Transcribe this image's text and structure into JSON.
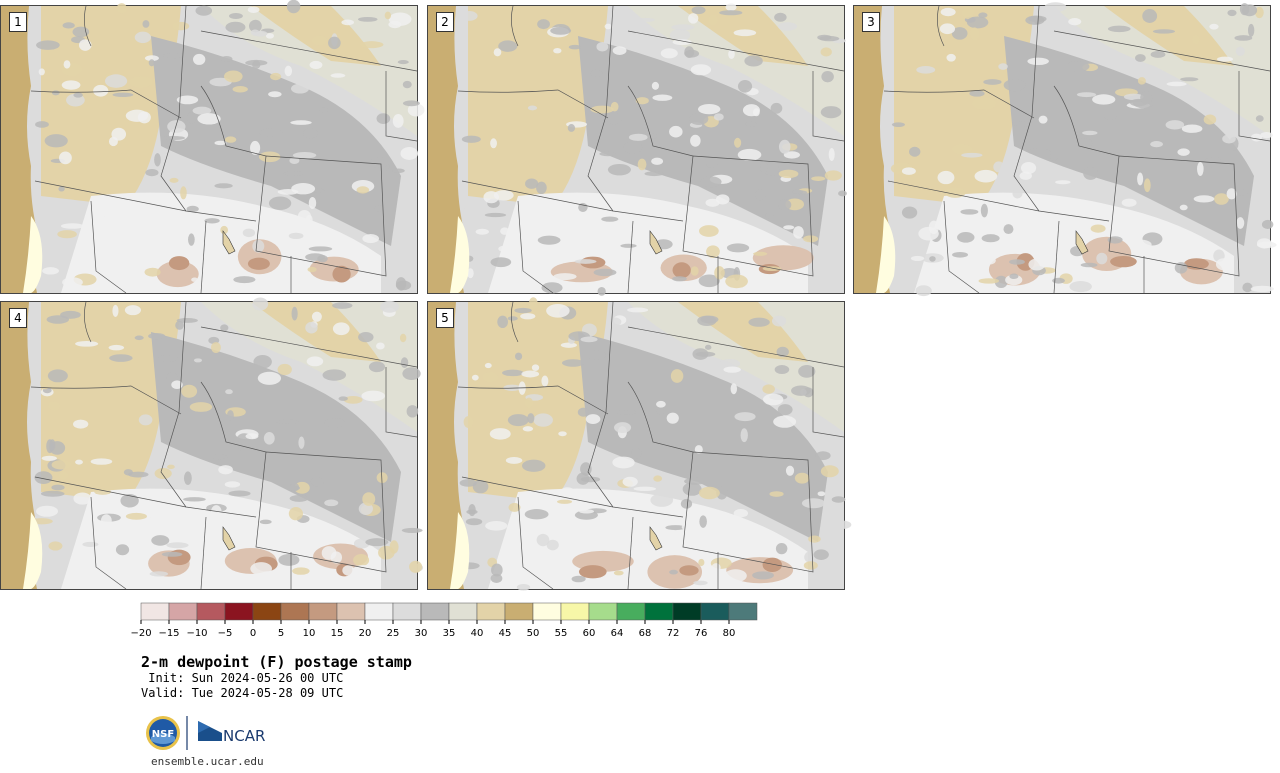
{
  "figure": {
    "title": "2-m dewpoint (F) postage stamp",
    "init": " Init: Sun 2024-05-26 00 UTC",
    "valid": "Valid: Tue 2024-05-28 09 UTC",
    "footer_url": "ensemble.ucar.edu",
    "logo_text": "NCAR",
    "logo_seal": "NSF"
  },
  "panels": [
    {
      "label": "1"
    },
    {
      "label": "2"
    },
    {
      "label": "3"
    },
    {
      "label": "4"
    },
    {
      "label": "5"
    }
  ],
  "colorbar": {
    "tick_labels": [
      "−20",
      "−15",
      "−10",
      "−5",
      "0",
      "5",
      "10",
      "15",
      "20",
      "25",
      "30",
      "35",
      "40",
      "45",
      "50",
      "55",
      "60",
      "64",
      "68",
      "72",
      "76",
      "80"
    ],
    "colors": [
      "#f1e6e4",
      "#d5a5a6",
      "#b5595f",
      "#8b1420",
      "#8b4513",
      "#ad7653",
      "#c49a80",
      "#dcc2b0",
      "#f0f0f0",
      "#dcdcdc",
      "#b9b9b9",
      "#e0e0d4",
      "#e3d3a8",
      "#c9ae72",
      "#fffde0",
      "#f7f7a8",
      "#a6dc8c",
      "#48ad5e",
      "#00723c",
      "#003c26",
      "#1a5c5c",
      "#4d7a7a"
    ]
  },
  "map_colors": {
    "ocean": "#c9ae72",
    "pale_tan": "#e3d3a8",
    "light_tan": "#e0e0d4",
    "gray_dark": "#b9b9b9",
    "gray_mid": "#dcdcdc",
    "gray_light": "#f0f0f0",
    "brown_light": "#dcc2b0",
    "brown_mid": "#c49a80",
    "cream": "#fffde0",
    "border": "#555555"
  }
}
